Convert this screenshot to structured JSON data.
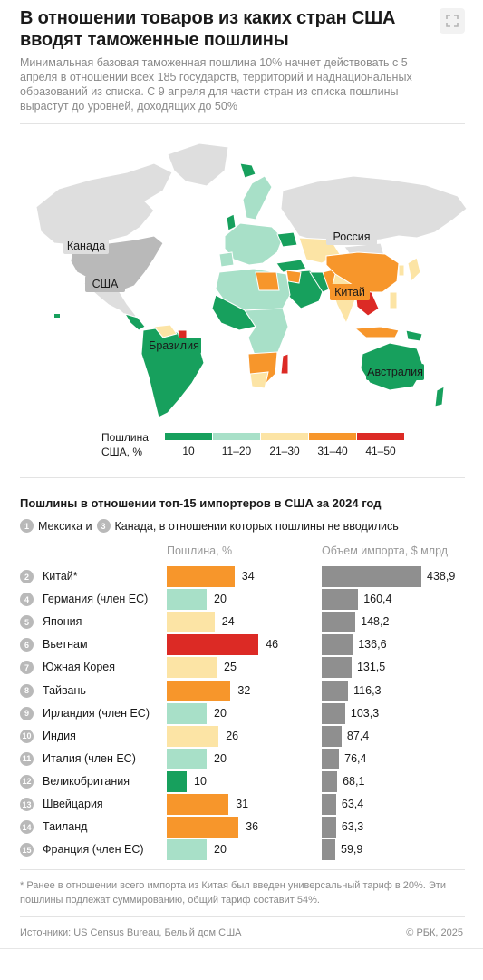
{
  "title": "В отношении товаров из каких стран США вводят таможенные пошлины",
  "subtitle": "Минимальная базовая таможенная пошлина 10% начнет действовать с 5 апреля в отношении всех 185 государств, территорий и наднациональных образований из списка. С 9 апреля для части стран из списка пошлины вырастут до уровней, доходящих до 50%",
  "map": {
    "labels": {
      "canada": "Канада",
      "usa": "США",
      "russia": "Россия",
      "china": "Китай",
      "brazil": "Бразилия",
      "australia": "Австралия"
    }
  },
  "legend": {
    "title_line1": "Пошлина",
    "title_line2": "США, %",
    "items": [
      {
        "label": "10",
        "color": "#17a05d"
      },
      {
        "label": "11–20",
        "color": "#a8e0c8"
      },
      {
        "label": "21–30",
        "color": "#fce4a5"
      },
      {
        "label": "31–40",
        "color": "#f7962b"
      },
      {
        "label": "41–50",
        "color": "#dc2a25"
      }
    ]
  },
  "section_title": "Пошлины в отношении топ-15 импортеров в США за 2024 год",
  "note": {
    "num1": "1",
    "text1": "Мексика и",
    "num3": "3",
    "text2": "Канада, в отношении которых пошлины не вводились"
  },
  "col_tariff": "Пошлина, %",
  "col_import": "Объем импорта, $ млрд",
  "chart_data": {
    "type": "bar",
    "title": "Пошлины в отношении топ-15 импортеров в США за 2024 год",
    "categories": [
      "Китай*",
      "Германия (член ЕС)",
      "Япония",
      "Вьетнам",
      "Южная Корея",
      "Тайвань",
      "Ирландия (член ЕС)",
      "Индия",
      "Италия (член ЕС)",
      "Великобритания",
      "Швейцария",
      "Таиланд",
      "Франция (член ЕС)"
    ],
    "ranks": [
      "2",
      "4",
      "5",
      "6",
      "7",
      "8",
      "9",
      "10",
      "11",
      "12",
      "13",
      "14",
      "15"
    ],
    "series": [
      {
        "name": "Пошлина, %",
        "values": [
          34,
          20,
          24,
          46,
          25,
          32,
          20,
          26,
          20,
          10,
          31,
          36,
          20
        ],
        "display": [
          "34",
          "20",
          "24",
          "46",
          "25",
          "32",
          "20",
          "26",
          "20",
          "10",
          "31",
          "36",
          "20"
        ]
      },
      {
        "name": "Объем импорта, $ млрд",
        "values": [
          438.9,
          160.4,
          148.2,
          136.6,
          131.5,
          116.3,
          103.3,
          87.4,
          76.4,
          68.1,
          63.4,
          63.3,
          59.9
        ],
        "display": [
          "438,9",
          "160,4",
          "148,2",
          "136,6",
          "131,5",
          "116,3",
          "103,3",
          "87,4",
          "76,4",
          "68,1",
          "63,4",
          "63,3",
          "59,9"
        ]
      }
    ],
    "tariff_colors": [
      "#f7962b",
      "#a8e0c8",
      "#fce4a5",
      "#dc2a25",
      "#fce4a5",
      "#f7962b",
      "#a8e0c8",
      "#fce4a5",
      "#a8e0c8",
      "#17a05d",
      "#f7962b",
      "#f7962b",
      "#a8e0c8"
    ],
    "import_color": "#8f8f8f"
  },
  "footnote": "* Ранее в отношении всего импорта из Китая был введен универсальный тариф в 20%. Эти пошлины подлежат суммированию, общий тариф составит 54%.",
  "source": "Источники: US Census Bureau, Белый дом США",
  "copyright": "© РБК, 2025"
}
